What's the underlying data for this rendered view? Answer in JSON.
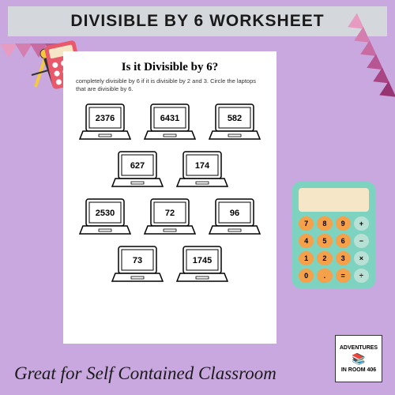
{
  "title": "DIVISIBLE BY 6 WORKSHEET",
  "worksheet": {
    "heading": "Is it Divisible by 6?",
    "instruction": "completely divisible by 6 if it is divisible by 2 and 3. Circle the laptops that are divisible by 6.",
    "numbers": [
      "2376",
      "6431",
      "582",
      "627",
      "174",
      "2530",
      "72",
      "96",
      "73",
      "1745"
    ],
    "rows": [
      [
        0,
        1,
        2
      ],
      [
        3,
        4
      ],
      [
        5,
        6,
        7
      ],
      [
        8,
        9
      ]
    ]
  },
  "footer": "Great for Self Contained Classroom",
  "logo": {
    "line1": "ADVENTURES",
    "line2": "IN ROOM 406"
  },
  "bunting_colors_left": [
    "#e89bc0",
    "#d47fb0",
    "#c96ba3",
    "#b85593"
  ],
  "bunting_colors_right": [
    "#e89bc0",
    "#d47fb0",
    "#c96ba3",
    "#b85593",
    "#a84582",
    "#973572"
  ],
  "teal_calc": {
    "body_color": "#7dd3c0",
    "screen_color": "#f5e6c8",
    "keys": [
      {
        "l": "7",
        "c": "#f5a04a"
      },
      {
        "l": "8",
        "c": "#f5a04a"
      },
      {
        "l": "9",
        "c": "#f5a04a"
      },
      {
        "l": "+",
        "c": "#b8e0d5"
      },
      {
        "l": "4",
        "c": "#f5a04a"
      },
      {
        "l": "5",
        "c": "#f5a04a"
      },
      {
        "l": "6",
        "c": "#f5a04a"
      },
      {
        "l": "−",
        "c": "#b8e0d5"
      },
      {
        "l": "1",
        "c": "#f5a04a"
      },
      {
        "l": "2",
        "c": "#f5a04a"
      },
      {
        "l": "3",
        "c": "#f5a04a"
      },
      {
        "l": "×",
        "c": "#b8e0d5"
      },
      {
        "l": "0",
        "c": "#f5a04a"
      },
      {
        "l": ".",
        "c": "#f5a04a"
      },
      {
        "l": "=",
        "c": "#f5a04a"
      },
      {
        "l": "÷",
        "c": "#b8e0d5"
      }
    ]
  },
  "colors": {
    "bg": "#c9a8e0",
    "title_bg": "#d4d8dc",
    "red_calc": "#e85a6b",
    "compass": "#f5c842"
  }
}
